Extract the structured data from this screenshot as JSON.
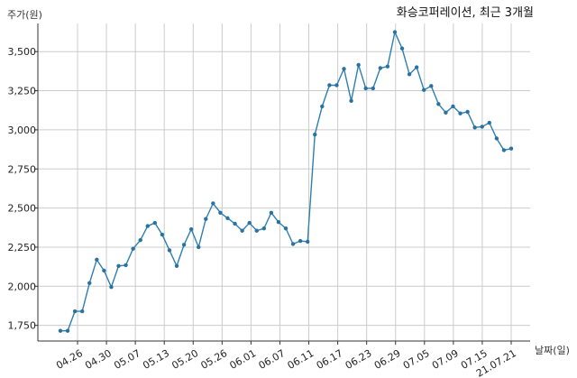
{
  "chart_data": {
    "type": "line",
    "title": "화승코퍼레이션, 최근 3개월",
    "xlabel": "날짜(일)",
    "ylabel": "주가(원)",
    "x_tick_labels": [
      "04.26",
      "04.30",
      "05.07",
      "05.13",
      "05.20",
      "05.26",
      "06.01",
      "06.07",
      "06.11",
      "06.17",
      "06.23",
      "06.29",
      "07.05",
      "07.09",
      "07.15",
      "21.07.21"
    ],
    "ylim": [
      1650,
      3680
    ],
    "y_ticks": [
      1750,
      2000,
      2250,
      2500,
      2750,
      3000,
      3250,
      3500
    ],
    "y_tick_labels": [
      "1,750",
      "2,000",
      "2,250",
      "2,500",
      "2,750",
      "3,000",
      "3,250",
      "3,500"
    ],
    "grid": true,
    "colors": {
      "line": "#2e7fb0",
      "marker": "#2a73a0",
      "grid": "#cccccc"
    },
    "series": [
      {
        "values": [
          1715,
          1715,
          1840,
          1840,
          2020,
          2170,
          2100,
          1995,
          2130,
          2135,
          2240,
          2295,
          2385,
          2405,
          2330,
          2230,
          2130,
          2265,
          2365,
          2250,
          2430,
          2530,
          2470,
          2435,
          2400,
          2355,
          2405,
          2355,
          2370,
          2470,
          2410,
          2370,
          2270,
          2290,
          2285,
          2970,
          3150,
          3285,
          3285,
          3390,
          3185,
          3415,
          3265,
          3265,
          3395,
          3405,
          3625,
          3520,
          3355,
          3400,
          3255,
          3280,
          3165,
          3110,
          3150,
          3105,
          3115,
          3015,
          3020,
          3045,
          2945,
          2870,
          2880
        ]
      }
    ]
  }
}
